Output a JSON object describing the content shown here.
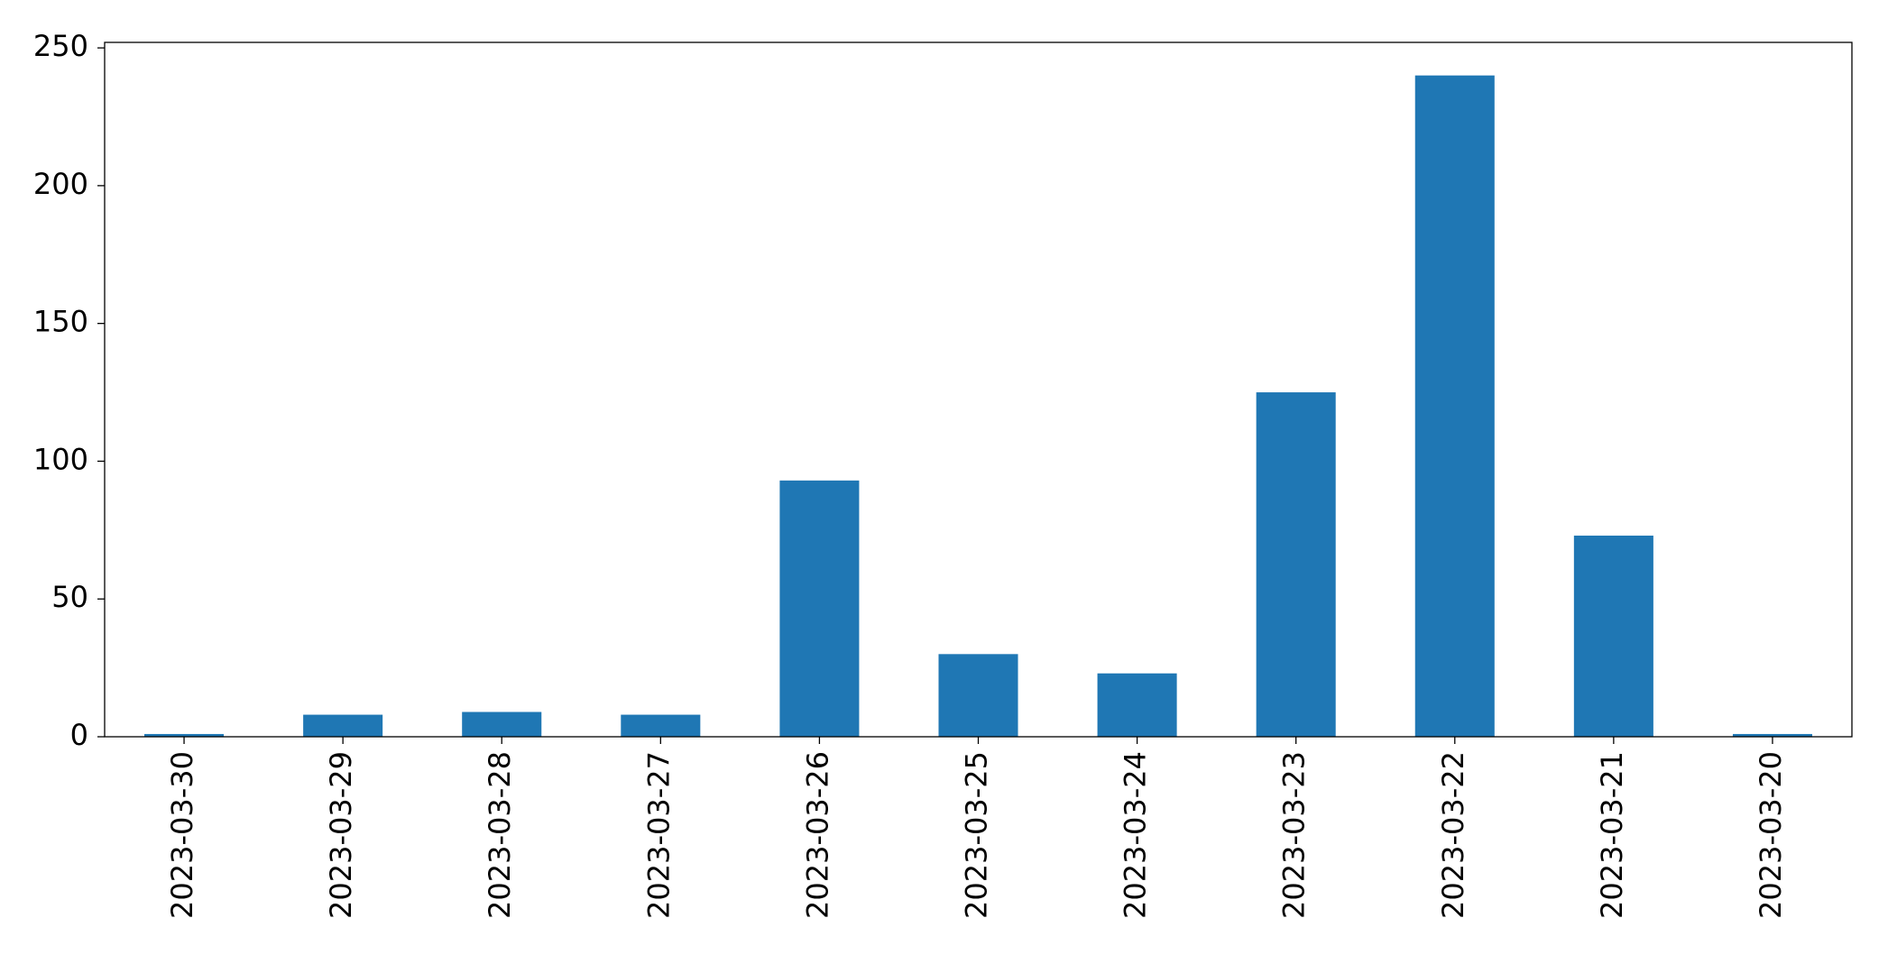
{
  "chart_data": {
    "type": "bar",
    "categories": [
      "2023-03-30",
      "2023-03-29",
      "2023-03-28",
      "2023-03-27",
      "2023-03-26",
      "2023-03-25",
      "2023-03-24",
      "2023-03-23",
      "2023-03-22",
      "2023-03-21",
      "2023-03-20"
    ],
    "values": [
      1,
      8,
      9,
      8,
      93,
      30,
      23,
      125,
      240,
      73,
      1
    ],
    "color": "#1f77b4",
    "ylim": [
      0,
      252
    ],
    "yticks": [
      0,
      50,
      100,
      150,
      200,
      250
    ],
    "grid": false
  }
}
